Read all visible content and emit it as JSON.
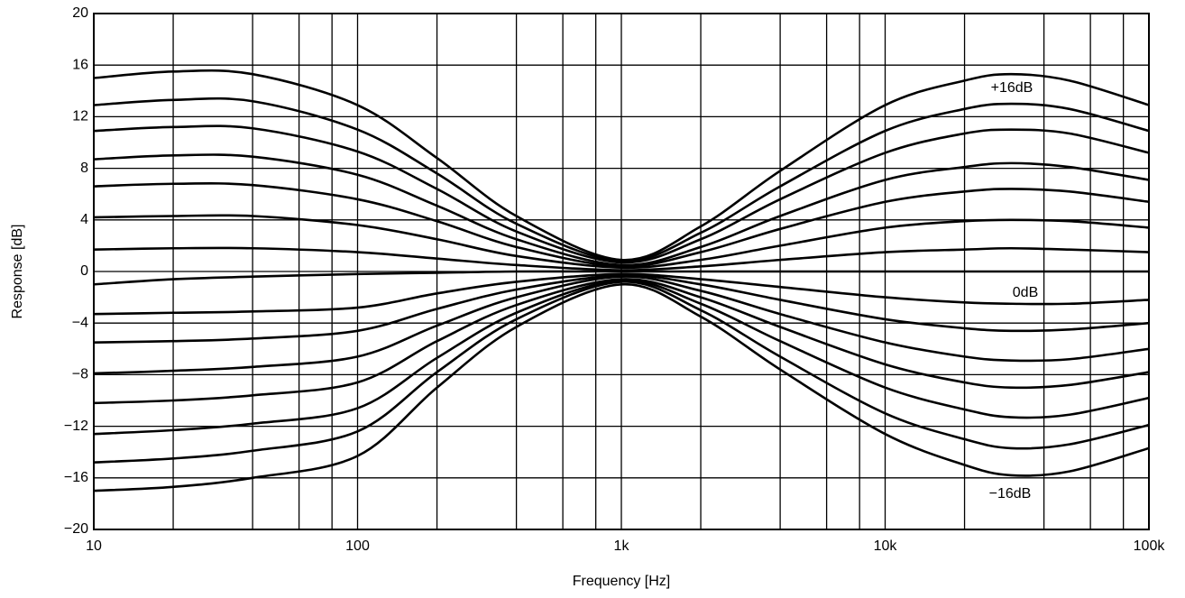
{
  "chart_data": {
    "type": "line",
    "x_label": "Frequency [Hz]",
    "y_label": "Response [dB]",
    "log_x": true,
    "grid": true,
    "color": "#000000",
    "x": [
      10,
      20,
      40,
      100,
      200,
      400,
      1000,
      2000,
      4000,
      10000,
      20000,
      30000,
      50000,
      100000
    ],
    "xlim": [
      10,
      100000
    ],
    "xticks": [
      10,
      100,
      {
        "value": 1000,
        "label": "1k"
      },
      {
        "value": 10000,
        "label": "10k"
      },
      {
        "value": 100000,
        "label": "100k"
      }
    ],
    "xminor": [
      20,
      40,
      60,
      80,
      200,
      400,
      600,
      800,
      2000,
      4000,
      6000,
      8000,
      20000,
      40000,
      60000,
      80000
    ],
    "ylim": [
      -20,
      20
    ],
    "yticks": [
      {
        "value": -20,
        "label": "−20"
      },
      {
        "value": -16,
        "label": "−16"
      },
      {
        "value": -12,
        "label": "−12"
      },
      {
        "value": -8,
        "label": "−8"
      },
      {
        "value": -4,
        "label": "−4"
      },
      0,
      4,
      8,
      12,
      16,
      20
    ],
    "annotations": [
      "+16dB",
      "0dB",
      "−16dB"
    ],
    "series": [
      {
        "values": [
          15.0,
          15.5,
          15.3,
          12.9,
          8.8,
          4.3,
          0.9,
          3.5,
          7.8,
          12.9,
          14.8,
          15.3,
          14.8,
          12.9
        ]
      },
      {
        "values": [
          12.9,
          13.3,
          13.2,
          11.0,
          7.6,
          3.7,
          0.8,
          3.0,
          6.6,
          10.9,
          12.6,
          13.0,
          12.6,
          10.9
        ]
      },
      {
        "values": [
          10.9,
          11.2,
          11.1,
          9.3,
          6.4,
          3.1,
          0.7,
          2.5,
          5.6,
          9.2,
          10.7,
          11.0,
          10.7,
          9.2
        ]
      },
      {
        "values": [
          8.7,
          9.0,
          8.9,
          7.5,
          5.1,
          2.5,
          0.5,
          1.9,
          4.3,
          7.1,
          8.1,
          8.4,
          8.1,
          7.1
        ]
      },
      {
        "values": [
          6.6,
          6.8,
          6.7,
          5.6,
          3.9,
          1.9,
          0.4,
          1.5,
          3.3,
          5.4,
          6.2,
          6.4,
          6.2,
          5.4
        ]
      },
      {
        "values": [
          4.2,
          4.3,
          4.3,
          3.6,
          2.5,
          1.2,
          0.3,
          0.9,
          2.0,
          3.4,
          3.9,
          4.0,
          3.9,
          3.4
        ]
      },
      {
        "values": [
          1.7,
          1.8,
          1.8,
          1.5,
          1.0,
          0.5,
          0.1,
          0.4,
          0.9,
          1.5,
          1.7,
          1.8,
          1.7,
          1.5
        ]
      },
      {
        "values": [
          -1.0,
          -0.6,
          -0.4,
          -0.2,
          -0.1,
          0,
          0,
          0,
          0,
          0,
          0,
          0,
          0,
          0
        ]
      },
      {
        "values": [
          -3.3,
          -3.2,
          -3.1,
          -2.8,
          -1.7,
          -0.8,
          -0.2,
          -0.6,
          -1.2,
          -2.0,
          -2.4,
          -2.5,
          -2.5,
          -2.2
        ]
      },
      {
        "values": [
          -5.5,
          -5.4,
          -5.2,
          -4.6,
          -2.9,
          -1.4,
          -0.3,
          -1.0,
          -2.2,
          -3.7,
          -4.4,
          -4.6,
          -4.5,
          -4.0
        ]
      },
      {
        "values": [
          -7.9,
          -7.7,
          -7.4,
          -6.6,
          -4.2,
          -2.0,
          -0.4,
          -1.5,
          -3.3,
          -5.5,
          -6.6,
          -6.9,
          -6.8,
          -6.0
        ]
      },
      {
        "values": [
          -10.2,
          -10.0,
          -9.6,
          -8.6,
          -5.4,
          -2.6,
          -0.6,
          -2.0,
          -4.3,
          -7.2,
          -8.6,
          -9.0,
          -8.8,
          -7.8
        ]
      },
      {
        "values": [
          -12.6,
          -12.3,
          -11.8,
          -10.6,
          -6.7,
          -3.2,
          -0.7,
          -2.5,
          -5.4,
          -9.0,
          -10.7,
          -11.3,
          -11.1,
          -9.8
        ]
      },
      {
        "values": [
          -14.8,
          -14.5,
          -13.9,
          -12.4,
          -7.8,
          -3.7,
          -0.8,
          -3.0,
          -6.6,
          -11.0,
          -13.0,
          -13.7,
          -13.4,
          -11.9
        ]
      },
      {
        "values": [
          -17.0,
          -16.7,
          -16.0,
          -14.3,
          -9.0,
          -4.3,
          -1.0,
          -3.5,
          -7.6,
          -12.6,
          -15.0,
          -15.8,
          -15.5,
          -13.7
        ]
      }
    ]
  }
}
